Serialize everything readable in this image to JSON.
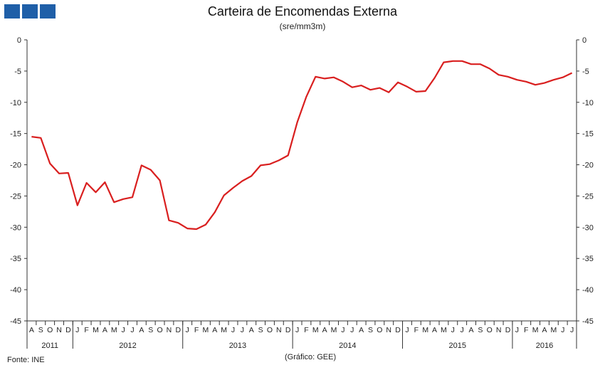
{
  "logo": {
    "name": "gee-logo",
    "color": "#1f5fa8"
  },
  "footer": {
    "source": "Fonte: INE",
    "credit": "(Gráfico: GEE)"
  },
  "chart_data": {
    "type": "line",
    "title": "Carteira de Encomendas Externa",
    "subtitle": "(sre/mm3m)",
    "ylim": [
      -45,
      0
    ],
    "yticks": [
      0,
      -5,
      -10,
      -15,
      -20,
      -25,
      -30,
      -35,
      -40,
      -45
    ],
    "ytick_labels": [
      "0",
      "-5",
      "-10",
      "-15",
      "-20",
      "-25",
      "-30",
      "-35",
      "-40",
      "-45"
    ],
    "grid": false,
    "secondary_y_axis": true,
    "x_month_labels": [
      "A",
      "S",
      "O",
      "N",
      "D",
      "J",
      "F",
      "M",
      "A",
      "M",
      "J",
      "J",
      "A",
      "S",
      "O",
      "N",
      "D",
      "J",
      "F",
      "M",
      "A",
      "M",
      "J",
      "J",
      "A",
      "S",
      "O",
      "N",
      "D",
      "J",
      "F",
      "M",
      "A",
      "M",
      "J",
      "J",
      "A",
      "S",
      "O",
      "N",
      "D",
      "J",
      "F",
      "M",
      "A",
      "M",
      "J",
      "J",
      "A",
      "S",
      "O",
      "N",
      "D",
      "J",
      "F",
      "M",
      "A",
      "M",
      "J",
      "J"
    ],
    "x_year_groups": [
      {
        "label": "2011",
        "months": 5
      },
      {
        "label": "2012",
        "months": 12
      },
      {
        "label": "2013",
        "months": 12
      },
      {
        "label": "2014",
        "months": 12
      },
      {
        "label": "2015",
        "months": 12
      },
      {
        "label": "2016",
        "months": 7
      }
    ],
    "series": [
      {
        "color": "#d91f1f",
        "values": [
          -15.5,
          -15.7,
          -19.8,
          -21.4,
          -21.3,
          -26.5,
          -22.9,
          -24.4,
          -22.8,
          -26.0,
          -25.5,
          -25.2,
          -20.1,
          -20.8,
          -22.5,
          -28.9,
          -29.3,
          -30.2,
          -30.3,
          -29.6,
          -27.6,
          -24.9,
          -23.7,
          -22.6,
          -21.8,
          -20.1,
          -19.9,
          -19.3,
          -18.5,
          -13.2,
          -9.1,
          -5.9,
          -6.2,
          -6.0,
          -6.7,
          -7.6,
          -7.3,
          -8.0,
          -7.7,
          -8.4,
          -6.8,
          -7.5,
          -8.3,
          -8.2,
          -6.1,
          -3.6,
          -3.4,
          -3.4,
          -3.9,
          -3.9,
          -4.6,
          -5.6,
          -5.9,
          -6.4,
          -6.7,
          -7.2,
          -6.9,
          -6.4,
          -6.0,
          -5.3
        ]
      }
    ]
  }
}
